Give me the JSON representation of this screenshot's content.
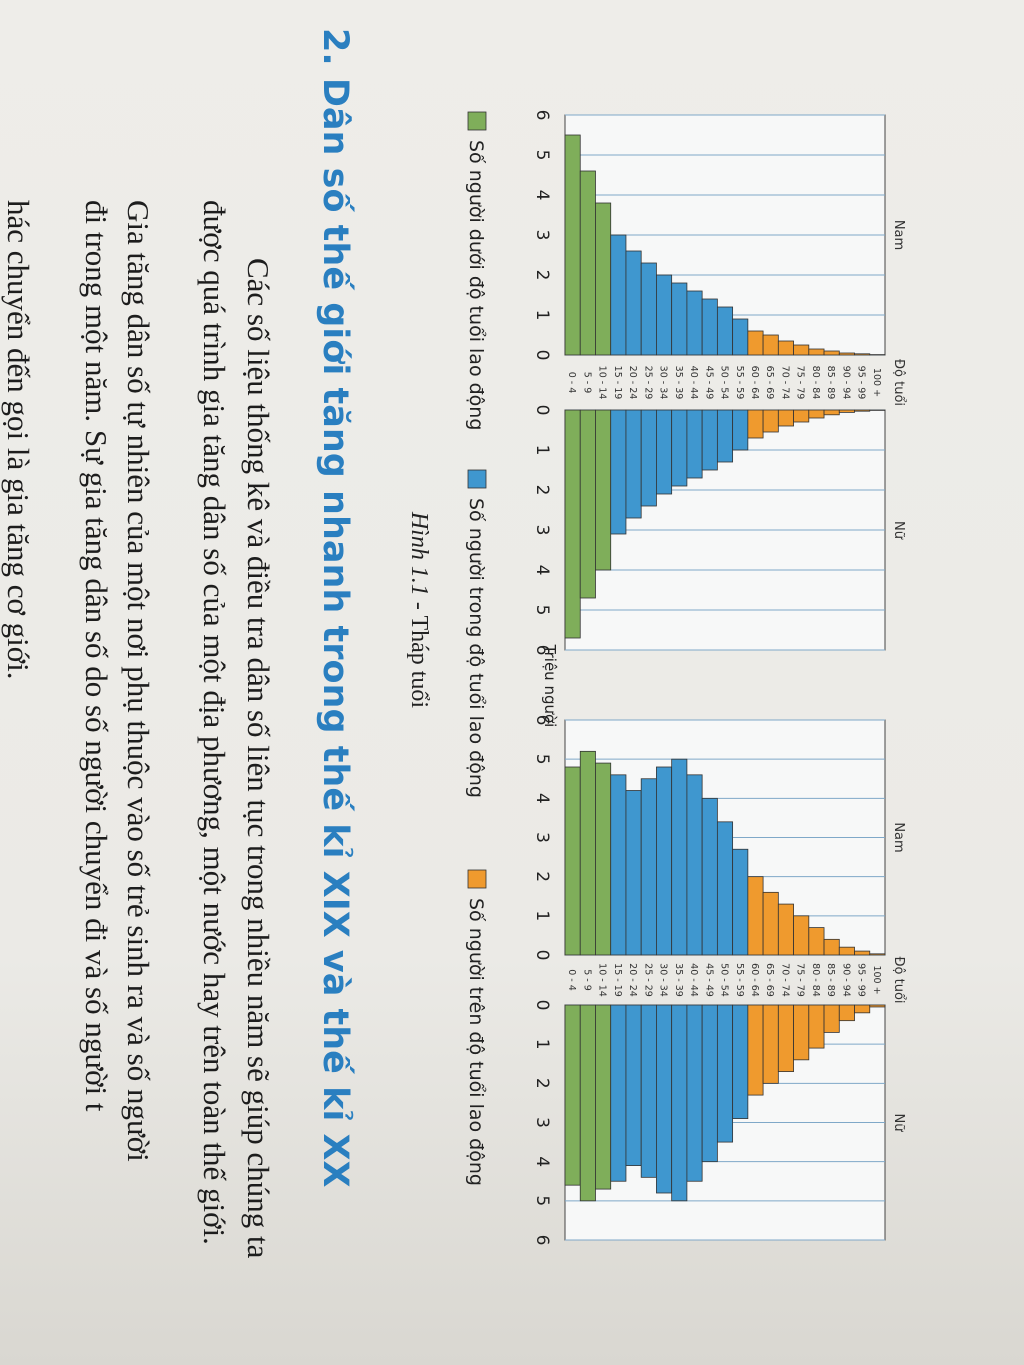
{
  "chart_data": [
    {
      "type": "population-pyramid",
      "left_label": "Nam",
      "right_label": "Nữ",
      "category_label": "Độ tuổi",
      "x_label": "Triệu người",
      "categories": [
        "0 - 4",
        "5 - 9",
        "10 - 14",
        "15 - 19",
        "20 - 24",
        "25 - 29",
        "30 - 34",
        "35 - 39",
        "40 - 44",
        "45 - 49",
        "50 - 54",
        "55 - 59",
        "60 - 64",
        "65 - 69",
        "70 - 74",
        "75 - 79",
        "80 - 84",
        "85 - 89",
        "90 - 94",
        "95 - 99",
        "100 +"
      ],
      "series": [
        {
          "name": "Nam",
          "side": "left",
          "values": [
            5.5,
            4.6,
            3.8,
            3.0,
            2.6,
            2.3,
            2.0,
            1.8,
            1.6,
            1.4,
            1.2,
            0.9,
            0.6,
            0.5,
            0.35,
            0.25,
            0.15,
            0.1,
            0.05,
            0.03,
            0.01
          ]
        },
        {
          "name": "Nữ",
          "side": "right",
          "values": [
            5.7,
            4.7,
            4.0,
            3.1,
            2.7,
            2.4,
            2.1,
            1.9,
            1.7,
            1.5,
            1.3,
            1.0,
            0.7,
            0.55,
            0.4,
            0.3,
            0.2,
            0.12,
            0.06,
            0.03,
            0.01
          ]
        }
      ],
      "bar_colors": [
        "#7fae5a",
        "#7fae5a",
        "#7fae5a",
        "#3f97cf",
        "#3f97cf",
        "#3f97cf",
        "#3f97cf",
        "#3f97cf",
        "#3f97cf",
        "#3f97cf",
        "#3f97cf",
        "#3f97cf",
        "#ef9a2e",
        "#ef9a2e",
        "#ef9a2e",
        "#ef9a2e",
        "#ef9a2e",
        "#ef9a2e",
        "#ef9a2e",
        "#ef9a2e",
        "#ef9a2e"
      ],
      "xlim": [
        0,
        6
      ],
      "xticks": [
        0,
        1,
        2,
        3,
        4,
        5,
        6
      ],
      "grid": true
    },
    {
      "type": "population-pyramid",
      "left_label": "Nam",
      "right_label": "Nữ",
      "category_label": "Độ tuổi",
      "categories": [
        "0 - 4",
        "5 - 9",
        "10 - 14",
        "15 - 19",
        "20 - 24",
        "25 - 29",
        "30 - 34",
        "35 - 39",
        "40 - 44",
        "45 - 49",
        "50 - 54",
        "55 - 59",
        "60 - 64",
        "65 - 69",
        "70 - 74",
        "75 - 79",
        "80 - 84",
        "85 - 89",
        "90 - 94",
        "95 - 99",
        "100 +"
      ],
      "series": [
        {
          "name": "Nam",
          "side": "left",
          "values": [
            4.8,
            5.2,
            4.9,
            4.6,
            4.2,
            4.5,
            4.8,
            5.0,
            4.6,
            4.0,
            3.4,
            2.7,
            2.0,
            1.6,
            1.3,
            1.0,
            0.7,
            0.4,
            0.2,
            0.1,
            0.03
          ]
        },
        {
          "name": "Nữ",
          "side": "right",
          "values": [
            4.6,
            5.0,
            4.7,
            4.5,
            4.1,
            4.4,
            4.8,
            5.0,
            4.5,
            4.0,
            3.5,
            2.9,
            2.3,
            2.0,
            1.7,
            1.4,
            1.1,
            0.7,
            0.4,
            0.2,
            0.05
          ]
        }
      ],
      "bar_colors": [
        "#7fae5a",
        "#7fae5a",
        "#7fae5a",
        "#3f97cf",
        "#3f97cf",
        "#3f97cf",
        "#3f97cf",
        "#3f97cf",
        "#3f97cf",
        "#3f97cf",
        "#3f97cf",
        "#3f97cf",
        "#ef9a2e",
        "#ef9a2e",
        "#ef9a2e",
        "#ef9a2e",
        "#ef9a2e",
        "#ef9a2e",
        "#ef9a2e",
        "#ef9a2e",
        "#ef9a2e"
      ],
      "xlim": [
        0,
        6
      ],
      "xticks": [
        0,
        1,
        2,
        3,
        4,
        5,
        6
      ],
      "grid": true
    }
  ],
  "legend": [
    {
      "label": "Số người dưới độ tuổi lao động",
      "color": "#7fae5a"
    },
    {
      "label": "Số người trong độ tuổi lao động",
      "color": "#3f97cf"
    },
    {
      "label": "Số người trên độ tuổi lao động",
      "color": "#ef9a2e"
    }
  ],
  "caption": {
    "number": "Hình 1.1",
    "separator": " - ",
    "text": "Tháp tuổi"
  },
  "section": {
    "heading": "2. Dân số thế giới tăng nhanh trong thế kỉ XIX và thế kỉ XX",
    "lines": [
      "Các số liệu thống kê và điều tra dân số liên tục trong nhiều năm sẽ giúp chúng ta",
      "được quá trình gia tăng dân số của một địa phương, một nước hay trên toàn thế giới.",
      "Gia tăng dân số tự nhiên của một nơi phụ thuộc vào số trẻ sinh ra và số người",
      "đi trong một năm. Sự gia tăng dân số do số người chuyển đi và số người t",
      "hác chuyển đến gọi là gia tăng cơ giới."
    ]
  }
}
